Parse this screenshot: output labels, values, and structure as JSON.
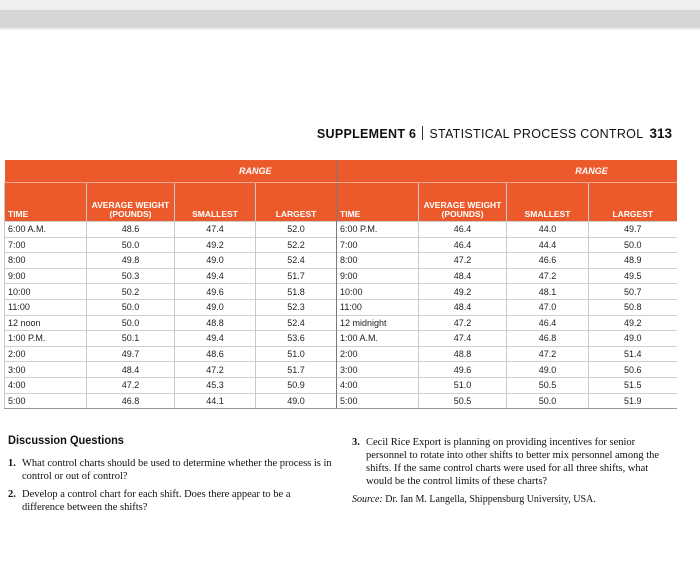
{
  "header": {
    "supplement": "SUPPLEMENT 6",
    "title": "STATISTICAL PROCESS CONTROL",
    "page": "313"
  },
  "table": {
    "groups": [
      "RANGE",
      "RANGE"
    ],
    "columns": [
      "TIME",
      "AVERAGE WEIGHT (POUNDS)",
      "SMALLEST",
      "LARGEST",
      "TIME",
      "AVERAGE WEIGHT (POUNDS)",
      "SMALLEST",
      "LARGEST"
    ],
    "rows": [
      [
        "6:00 A.M.",
        "48.6",
        "47.4",
        "52.0",
        "6:00 P.M.",
        "46.4",
        "44.0",
        "49.7"
      ],
      [
        "7:00",
        "50.0",
        "49.2",
        "52.2",
        "7:00",
        "46.4",
        "44.4",
        "50.0"
      ],
      [
        "8:00",
        "49.8",
        "49.0",
        "52.4",
        "8:00",
        "47.2",
        "46.6",
        "48.9"
      ],
      [
        "9:00",
        "50.3",
        "49.4",
        "51.7",
        "9:00",
        "48.4",
        "47.2",
        "49.5"
      ],
      [
        "10:00",
        "50.2",
        "49.6",
        "51.8",
        "10:00",
        "49.2",
        "48.1",
        "50.7"
      ],
      [
        "11:00",
        "50.0",
        "49.0",
        "52.3",
        "11:00",
        "48.4",
        "47.0",
        "50.8"
      ],
      [
        "12 noon",
        "50.0",
        "48.8",
        "52.4",
        "12 midnight",
        "47.2",
        "46.4",
        "49.2"
      ],
      [
        "1:00 P.M.",
        "50.1",
        "49.4",
        "53.6",
        "1:00 A.M.",
        "47.4",
        "46.8",
        "49.0"
      ],
      [
        "2:00",
        "49.7",
        "48.6",
        "51.0",
        "2:00",
        "48.8",
        "47.2",
        "51.4"
      ],
      [
        "3:00",
        "48.4",
        "47.2",
        "51.7",
        "3:00",
        "49.6",
        "49.0",
        "50.6"
      ],
      [
        "4:00",
        "47.2",
        "45.3",
        "50.9",
        "4:00",
        "51.0",
        "50.5",
        "51.5"
      ],
      [
        "5:00",
        "46.8",
        "44.1",
        "49.0",
        "5:00",
        "50.5",
        "50.0",
        "51.9"
      ]
    ]
  },
  "discussion": {
    "title": "Discussion Questions",
    "questions": [
      {
        "number": "1.",
        "text": "What control charts should be used to determine whether the process is in control or out of control?"
      },
      {
        "number": "2.",
        "text": "Develop a control chart for each shift. Does there appear to be a difference between the shifts?"
      },
      {
        "number": "3.",
        "text": "Cecil Rice Export is planning on providing incentives for senior personnel to rotate into other shifts to better mix personnel among the shifts. If the same control charts were used for all three shifts, what would be the control limits of these charts?"
      }
    ],
    "source": {
      "label": "Source:",
      "text": "Dr. Ian M. Langella, Shippensburg University, USA."
    }
  }
}
